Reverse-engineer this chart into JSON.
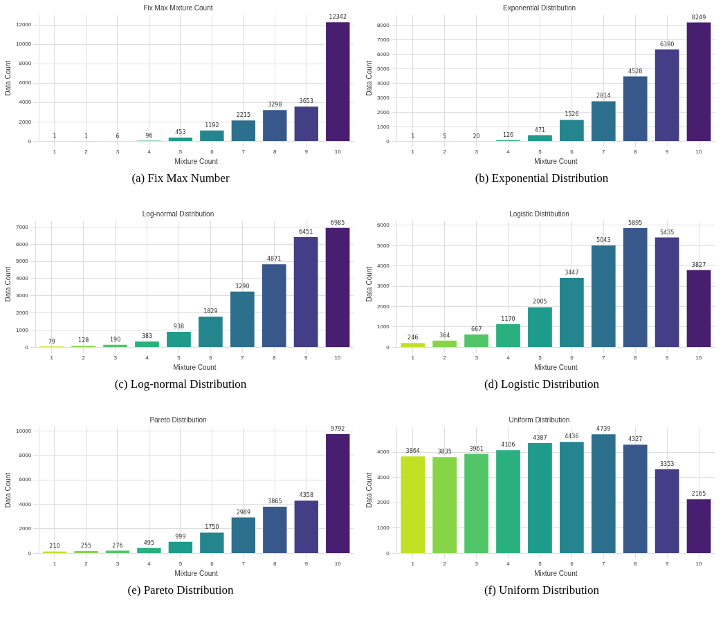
{
  "chart_data": [
    {
      "type": "bar",
      "title": "Fix Max Mixture Count",
      "xlabel": "Mixture Count",
      "ylabel": "Data Count",
      "categories": [
        "1",
        "2",
        "3",
        "4",
        "5",
        "6",
        "7",
        "8",
        "9",
        "10"
      ],
      "values": [
        1,
        1,
        6,
        96,
        453,
        1192,
        2215,
        3298,
        3653,
        12342
      ],
      "colors": [
        "#c2e124",
        "#86d549",
        "#52c569",
        "#2ab07f",
        "#1e9b8a",
        "#25858e",
        "#2d708e",
        "#38588c",
        "#433e85",
        "#481f70"
      ],
      "ylim": [
        0,
        13000
      ],
      "yticks": [
        0,
        2000,
        4000,
        6000,
        8000,
        10000,
        12000
      ],
      "grid": true,
      "data_labels": true,
      "annotations": [
        "(a) Fix Max Number"
      ]
    },
    {
      "type": "bar",
      "title": "Exponential Distribution",
      "xlabel": "Mixture Count",
      "ylabel": "Data Count",
      "categories": [
        "1",
        "2",
        "3",
        "4",
        "5",
        "6",
        "7",
        "8",
        "9",
        "10"
      ],
      "values": [
        1,
        5,
        20,
        126,
        471,
        1526,
        2814,
        4528,
        6390,
        8249
      ],
      "colors": [
        "#c2e124",
        "#86d549",
        "#52c569",
        "#2ab07f",
        "#1e9b8a",
        "#25858e",
        "#2d708e",
        "#38588c",
        "#433e85",
        "#481f70"
      ],
      "ylim": [
        0,
        8700
      ],
      "yticks": [
        0,
        1000,
        2000,
        3000,
        4000,
        5000,
        6000,
        7000,
        8000
      ],
      "grid": true,
      "data_labels": true,
      "annotations": [
        "(b) Exponential Distribution"
      ]
    },
    {
      "type": "bar",
      "title": "Log-normal Distribution",
      "xlabel": "Mixture Count",
      "ylabel": "Data Count",
      "categories": [
        "1",
        "2",
        "3",
        "4",
        "5",
        "6",
        "7",
        "8",
        "9",
        "10"
      ],
      "values": [
        79,
        128,
        190,
        383,
        938,
        1829,
        3290,
        4871,
        6451,
        6985
      ],
      "colors": [
        "#c2e124",
        "#86d549",
        "#52c569",
        "#2ab07f",
        "#1e9b8a",
        "#25858e",
        "#2d708e",
        "#38588c",
        "#433e85",
        "#481f70"
      ],
      "ylim": [
        0,
        7340
      ],
      "yticks": [
        0,
        1000,
        2000,
        3000,
        4000,
        5000,
        6000,
        7000
      ],
      "grid": true,
      "data_labels": true,
      "annotations": [
        "(c) Log-normal Distribution"
      ]
    },
    {
      "type": "bar",
      "title": "Logistic Distribution",
      "xlabel": "Mixture Count",
      "ylabel": "Data Count",
      "categories": [
        "1",
        "2",
        "3",
        "4",
        "5",
        "6",
        "7",
        "8",
        "9",
        "10"
      ],
      "values": [
        246,
        364,
        667,
        1170,
        2005,
        3447,
        5043,
        5895,
        5435,
        3827
      ],
      "colors": [
        "#c2e124",
        "#86d549",
        "#52c569",
        "#2ab07f",
        "#1e9b8a",
        "#25858e",
        "#2d708e",
        "#38588c",
        "#433e85",
        "#481f70"
      ],
      "ylim": [
        0,
        6200
      ],
      "yticks": [
        0,
        1000,
        2000,
        3000,
        4000,
        5000,
        6000
      ],
      "grid": true,
      "data_labels": true,
      "annotations": [
        "(d) Logistic Distribution"
      ]
    },
    {
      "type": "bar",
      "title": "Pareto Distribution",
      "xlabel": "Mixture Count",
      "ylabel": "Data Count",
      "categories": [
        "1",
        "2",
        "3",
        "4",
        "5",
        "6",
        "7",
        "8",
        "9",
        "10"
      ],
      "values": [
        210,
        255,
        276,
        495,
        999,
        1750,
        2989,
        3865,
        4358,
        9792
      ],
      "colors": [
        "#c2e124",
        "#86d549",
        "#52c569",
        "#2ab07f",
        "#1e9b8a",
        "#25858e",
        "#2d708e",
        "#38588c",
        "#433e85",
        "#481f70"
      ],
      "ylim": [
        0,
        10300
      ],
      "yticks": [
        0,
        2000,
        4000,
        6000,
        8000,
        10000
      ],
      "grid": true,
      "data_labels": true,
      "annotations": [
        "(e) Pareto Distribution"
      ]
    },
    {
      "type": "bar",
      "title": "Uniform Distribution",
      "xlabel": "Mixture Count",
      "ylabel": "Data Count",
      "categories": [
        "1",
        "2",
        "3",
        "4",
        "5",
        "6",
        "7",
        "8",
        "9",
        "10"
      ],
      "values": [
        3864,
        3835,
        3961,
        4106,
        4387,
        4436,
        4739,
        4327,
        3353,
        2165
      ],
      "colors": [
        "#c2e124",
        "#86d549",
        "#52c569",
        "#2ab07f",
        "#1e9b8a",
        "#25858e",
        "#2d708e",
        "#38588c",
        "#433e85",
        "#481f70"
      ],
      "ylim": [
        0,
        4990
      ],
      "yticks": [
        0,
        1000,
        2000,
        3000,
        4000
      ],
      "grid": true,
      "data_labels": true,
      "annotations": [
        "(f) Uniform Distribution"
      ]
    }
  ]
}
